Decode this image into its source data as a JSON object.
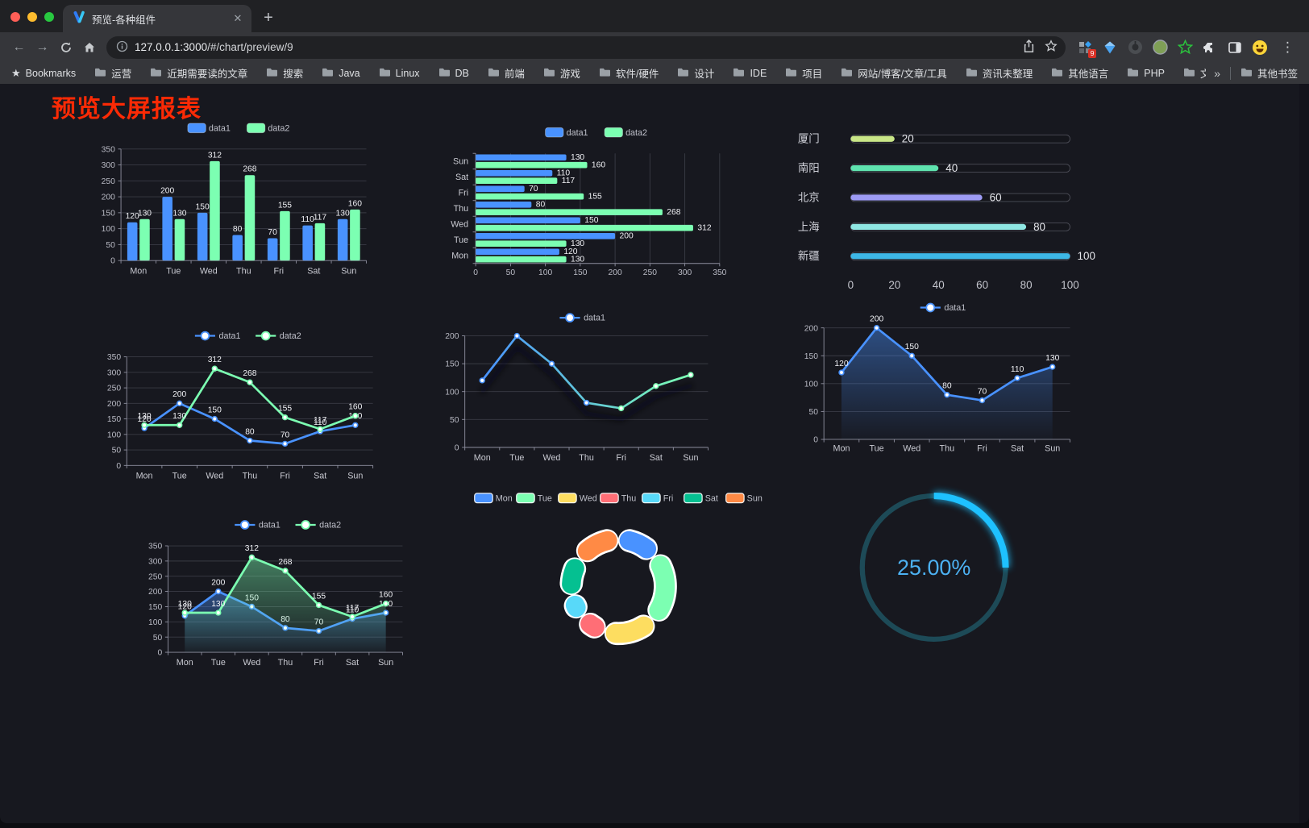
{
  "browser": {
    "tab_title": "预览-各种组件",
    "url_host": "127.0.0.1:3000",
    "url_path": "/#/chart/preview/9",
    "bookmarks_bar_label": "Bookmarks",
    "bookmark_folders": [
      "运营",
      "近期需要读的文章",
      "搜索",
      "Java",
      "Linux",
      "DB",
      "前端",
      "游戏",
      "软件/硬件",
      "设计",
      "IDE",
      "项目",
      "网站/博客/文章/工具",
      "资讯未整理",
      "其他语言",
      "PHP",
      "文件服务器"
    ],
    "bookmarks_overflow": "»",
    "other_bookmarks_label": "其他书签",
    "extension_badge": "9"
  },
  "page": {
    "title": "预览大屏报表",
    "title_color": "#fb2a05"
  },
  "palette": {
    "data1": "#4992ff",
    "data2": "#7cffb2",
    "axis_text": "#b9bac4",
    "category_text": "#c9cad2",
    "grid_line": "#3a3b45",
    "axis_line": "#8f90a0",
    "value_label": "#f0f1f5",
    "legend_text": "#bfc0ca"
  },
  "chart_data": [
    {
      "id": "grouped-bar",
      "type": "bar",
      "categories": [
        "Mon",
        "Tue",
        "Wed",
        "Thu",
        "Fri",
        "Sat",
        "Sun"
      ],
      "series": [
        {
          "name": "data1",
          "color": "#4992ff",
          "values": [
            120,
            200,
            150,
            80,
            70,
            110,
            130
          ]
        },
        {
          "name": "data2",
          "color": "#7cffb2",
          "values": [
            130,
            130,
            312,
            268,
            155,
            117,
            160
          ]
        }
      ],
      "ylim": [
        0,
        350
      ],
      "ytick": 50,
      "show_labels": true,
      "legend_position": "top"
    },
    {
      "id": "grouped-bar-horizontal",
      "type": "bar-horizontal",
      "categories": [
        "Mon",
        "Tue",
        "Wed",
        "Thu",
        "Fri",
        "Sat",
        "Sun"
      ],
      "category_order_top_to_bottom": [
        "Sun",
        "Sat",
        "Fri",
        "Thu",
        "Wed",
        "Tue",
        "Mon"
      ],
      "series": [
        {
          "name": "data1",
          "color": "#4992ff",
          "values": [
            120,
            200,
            150,
            80,
            70,
            110,
            130
          ]
        },
        {
          "name": "data2",
          "color": "#7cffb2",
          "values": [
            130,
            130,
            312,
            268,
            155,
            117,
            160
          ]
        }
      ],
      "xlim": [
        0,
        350
      ],
      "xtick": 50,
      "show_labels": true,
      "legend_position": "top"
    },
    {
      "id": "city-progress",
      "type": "progress",
      "items": [
        {
          "label": "厦门",
          "value": 20,
          "color": "#c9e687"
        },
        {
          "label": "南阳",
          "value": 40,
          "color": "#5fe3af"
        },
        {
          "label": "北京",
          "value": 60,
          "color": "#9d9bf4"
        },
        {
          "label": "上海",
          "value": 80,
          "color": "#8fe7e3"
        },
        {
          "label": "新疆",
          "value": 100,
          "color": "#3db7e6"
        }
      ],
      "xlim": [
        0,
        100
      ],
      "xticks": [
        0,
        20,
        40,
        60,
        80,
        100
      ]
    },
    {
      "id": "line-two-series",
      "type": "line",
      "categories": [
        "Mon",
        "Tue",
        "Wed",
        "Thu",
        "Fri",
        "Sat",
        "Sun"
      ],
      "series": [
        {
          "name": "data1",
          "color": "#4992ff",
          "values": [
            120,
            200,
            150,
            80,
            70,
            110,
            130
          ]
        },
        {
          "name": "data2",
          "color": "#7cffb2",
          "values": [
            130,
            130,
            312,
            268,
            155,
            117,
            160
          ]
        }
      ],
      "ylim": [
        0,
        350
      ],
      "ytick": 50,
      "show_labels": true,
      "legend_position": "top"
    },
    {
      "id": "line-gradient",
      "type": "line",
      "categories": [
        "Mon",
        "Tue",
        "Wed",
        "Thu",
        "Fri",
        "Sat",
        "Sun"
      ],
      "series": [
        {
          "name": "data1",
          "color": "#4992ff",
          "color_end": "#7cffb2",
          "gradient_stroke": true,
          "values": [
            120,
            200,
            150,
            80,
            70,
            110,
            130
          ]
        }
      ],
      "ylim": [
        0,
        200
      ],
      "ytick": 50,
      "show_labels": false,
      "legend_position": "top"
    },
    {
      "id": "line-area",
      "type": "line",
      "categories": [
        "Mon",
        "Tue",
        "Wed",
        "Thu",
        "Fri",
        "Sat",
        "Sun"
      ],
      "series": [
        {
          "name": "data1",
          "color": "#4992ff",
          "area": true,
          "values": [
            120,
            200,
            150,
            80,
            70,
            110,
            130
          ]
        }
      ],
      "ylim": [
        0,
        200
      ],
      "ytick": 50,
      "show_labels": true,
      "legend_position": "top"
    },
    {
      "id": "line-two-area",
      "type": "line",
      "categories": [
        "Mon",
        "Tue",
        "Wed",
        "Thu",
        "Fri",
        "Sat",
        "Sun"
      ],
      "series": [
        {
          "name": "data1",
          "color": "#4992ff",
          "area": true,
          "values": [
            120,
            200,
            150,
            80,
            70,
            110,
            130
          ]
        },
        {
          "name": "data2",
          "color": "#7cffb2",
          "area": true,
          "values": [
            130,
            130,
            312,
            268,
            155,
            117,
            160
          ]
        }
      ],
      "ylim": [
        0,
        350
      ],
      "ytick": 50,
      "show_labels": true,
      "legend_position": "top"
    },
    {
      "id": "week-donut",
      "type": "pie",
      "items": [
        {
          "label": "Mon",
          "value": 120,
          "color": "#4992ff"
        },
        {
          "label": "Tue",
          "value": 200,
          "color": "#7cffb2"
        },
        {
          "label": "Wed",
          "value": 150,
          "color": "#fddd60"
        },
        {
          "label": "Thu",
          "value": 80,
          "color": "#ff6e76"
        },
        {
          "label": "Fri",
          "value": 70,
          "color": "#58d9f9"
        },
        {
          "label": "Sat",
          "value": 110,
          "color": "#05c091"
        },
        {
          "label": "Sun",
          "value": 130,
          "color": "#ff8a45"
        }
      ],
      "legend_position": "top"
    },
    {
      "id": "percent-gauge",
      "type": "gauge",
      "value": 25,
      "max": 100,
      "label": "25.00%",
      "arc_color": "#1ec1ff",
      "track_color": "#1d4a57",
      "text_color": "#4cb1f2"
    }
  ]
}
